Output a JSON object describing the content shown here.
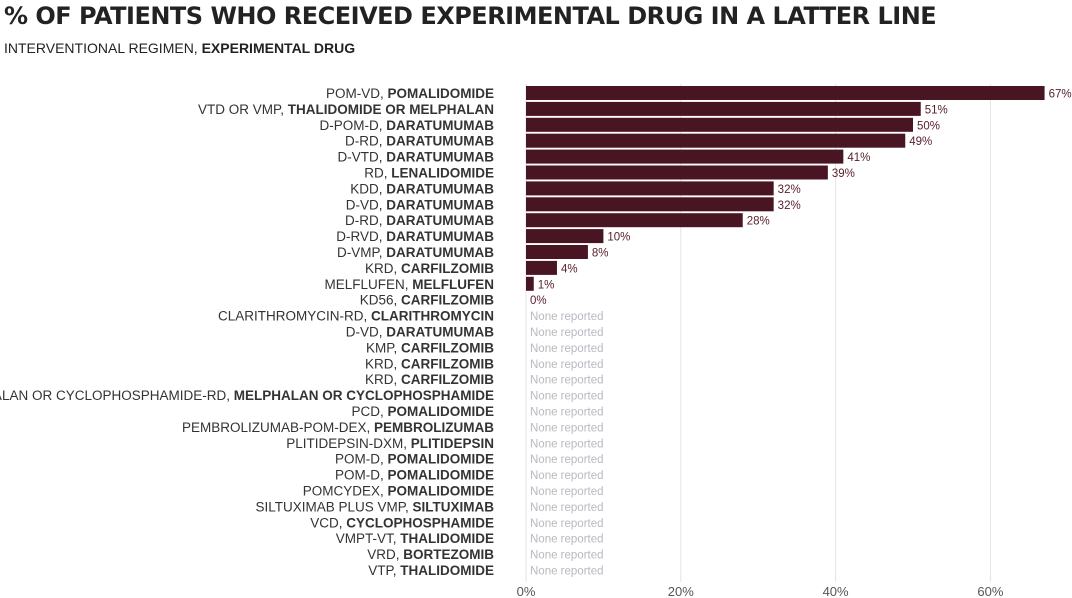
{
  "chart_data": {
    "type": "bar",
    "orientation": "horizontal",
    "title": "% OF PATIENTS WHO RECEIVED EXPERIMENTAL DRUG IN A LATTER LINE",
    "subtitle": {
      "regular": "INTERVENTIONAL REGIMEN, ",
      "bold": "EXPERIMENTAL DRUG"
    },
    "xlim": [
      0,
      70
    ],
    "xticks": [
      {
        "value": 0,
        "label": "0%"
      },
      {
        "value": 20,
        "label": "20%"
      },
      {
        "value": 40,
        "label": "40%"
      },
      {
        "value": 60,
        "label": "60%"
      }
    ],
    "grid": true,
    "bar_color": "#4a1523",
    "label_color": "#5a2030",
    "missing_color": "#b8b8c0",
    "missing_label": "None reported",
    "rows": [
      {
        "regimen": "POM-VD, ",
        "drug": "POMALIDOMIDE",
        "value": 67,
        "label": "67%"
      },
      {
        "regimen": "VTD OR VMP, ",
        "drug": "THALIDOMIDE OR MELPHALAN",
        "value": 51,
        "label": "51%"
      },
      {
        "regimen": "D-POM-D, ",
        "drug": "DARATUMUMAB",
        "value": 50,
        "label": "50%"
      },
      {
        "regimen": "D-RD, ",
        "drug": "DARATUMUMAB",
        "value": 49,
        "label": "49%"
      },
      {
        "regimen": "D-VTD, ",
        "drug": "DARATUMUMAB",
        "value": 41,
        "label": "41%"
      },
      {
        "regimen": "RD, ",
        "drug": "LENALIDOMIDE",
        "value": 39,
        "label": "39%"
      },
      {
        "regimen": "KDD, ",
        "drug": "DARATUMUMAB",
        "value": 32,
        "label": "32%"
      },
      {
        "regimen": "D-VD, ",
        "drug": "DARATUMUMAB",
        "value": 32,
        "label": "32%"
      },
      {
        "regimen": "D-RD, ",
        "drug": "DARATUMUMAB",
        "value": 28,
        "label": "28%"
      },
      {
        "regimen": "D-RVD, ",
        "drug": "DARATUMUMAB",
        "value": 10,
        "label": "10%"
      },
      {
        "regimen": "D-VMP, ",
        "drug": "DARATUMUMAB",
        "value": 8,
        "label": "8%"
      },
      {
        "regimen": "KRD, ",
        "drug": "CARFILZOMIB",
        "value": 4,
        "label": "4%"
      },
      {
        "regimen": "MELFLUFEN, ",
        "drug": "MELFLUFEN",
        "value": 1,
        "label": "1%"
      },
      {
        "regimen": "KD56, ",
        "drug": "CARFILZOMIB",
        "value": 0,
        "label": "0%"
      },
      {
        "regimen": "CLARITHROMYCIN-RD, ",
        "drug": "CLARITHROMYCIN",
        "value": null,
        "label": "None reported"
      },
      {
        "regimen": "D-VD, ",
        "drug": "DARATUMUMAB",
        "value": null,
        "label": "None reported"
      },
      {
        "regimen": "KMP, ",
        "drug": "CARFILZOMIB",
        "value": null,
        "label": "None reported"
      },
      {
        "regimen": "KRD, ",
        "drug": "CARFILZOMIB",
        "value": null,
        "label": "None reported"
      },
      {
        "regimen": "KRD, ",
        "drug": "CARFILZOMIB",
        "value": null,
        "label": "None reported"
      },
      {
        "regimen": "MELPHALAN OR CYCLOPHOSPHAMIDE-RD, ",
        "drug": "MELPHALAN OR CYCLOPHOSPHAMIDE",
        "value": null,
        "label": "None reported"
      },
      {
        "regimen": "PCD, ",
        "drug": "POMALIDOMIDE",
        "value": null,
        "label": "None reported"
      },
      {
        "regimen": "PEMBROLIZUMAB-POM-DEX, ",
        "drug": "PEMBROLIZUMAB",
        "value": null,
        "label": "None reported"
      },
      {
        "regimen": "PLITIDEPSIN-DXM, ",
        "drug": "PLITIDEPSIN",
        "value": null,
        "label": "None reported"
      },
      {
        "regimen": "POM-D, ",
        "drug": "POMALIDOMIDE",
        "value": null,
        "label": "None reported"
      },
      {
        "regimen": "POM-D, ",
        "drug": "POMALIDOMIDE",
        "value": null,
        "label": "None reported"
      },
      {
        "regimen": "POMCYDEX, ",
        "drug": "POMALIDOMIDE",
        "value": null,
        "label": "None reported"
      },
      {
        "regimen": "SILTUXIMAB PLUS VMP, ",
        "drug": "SILTUXIMAB",
        "value": null,
        "label": "None reported"
      },
      {
        "regimen": "VCD, ",
        "drug": "CYCLOPHOSPHAMIDE",
        "value": null,
        "label": "None reported"
      },
      {
        "regimen": "VMPT-VT, ",
        "drug": "THALIDOMIDE",
        "value": null,
        "label": "None reported"
      },
      {
        "regimen": "VRD, ",
        "drug": "BORTEZOMIB",
        "value": null,
        "label": "None reported"
      },
      {
        "regimen": "VTP, ",
        "drug": "THALIDOMIDE",
        "value": null,
        "label": "None reported"
      }
    ]
  }
}
